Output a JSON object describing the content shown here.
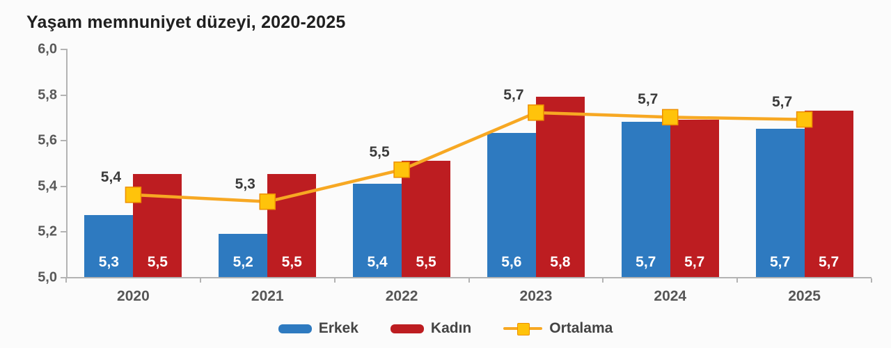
{
  "title": "Yaşam memnuniyet düzeyi, 2020-2025",
  "colors": {
    "erkek_blue": "#2e7ac0",
    "kadin_red": "#bd1d21",
    "line_orange": "#f7a823",
    "marker_yellow": "#ffc30b",
    "marker_border": "#ee8f00",
    "axis_gray": "#b3b3b3"
  },
  "chart_data": {
    "type": "bar",
    "title": "Yaşam memnuniyet düzeyi, 2020-2025",
    "categories": [
      "2020",
      "2021",
      "2022",
      "2023",
      "2024",
      "2025"
    ],
    "series": [
      {
        "name": "Erkek",
        "type": "bar",
        "color": "#2e7ac0",
        "values": [
          5.27,
          5.19,
          5.41,
          5.63,
          5.68,
          5.65
        ],
        "labels": [
          "5,3",
          "5,2",
          "5,4",
          "5,6",
          "5,7",
          "5,7"
        ]
      },
      {
        "name": "Kadın",
        "type": "bar",
        "color": "#bd1d21",
        "values": [
          5.45,
          5.45,
          5.51,
          5.79,
          5.69,
          5.73
        ],
        "labels": [
          "5,5",
          "5,5",
          "5,5",
          "5,8",
          "5,7",
          "5,7"
        ]
      },
      {
        "name": "Ortalama",
        "type": "line",
        "color": "#f7a823",
        "marker_color": "#ffc30b",
        "values": [
          5.36,
          5.33,
          5.47,
          5.72,
          5.7,
          5.69
        ],
        "labels": [
          "5,4",
          "5,3",
          "5,5",
          "5,7",
          "5,7",
          "5,7"
        ]
      }
    ],
    "xlabel": "",
    "ylabel": "",
    "ylim": [
      5.0,
      6.0
    ],
    "yticks": [
      "5,0",
      "5,2",
      "5,4",
      "5,6",
      "5,8",
      "6,0"
    ],
    "ytick_values": [
      5.0,
      5.2,
      5.4,
      5.6,
      5.8,
      6.0
    ],
    "grid": false,
    "legend_position": "bottom"
  },
  "legend": {
    "items": [
      {
        "label": "Erkek",
        "swatch": "bar",
        "color": "#2e7ac0"
      },
      {
        "label": "Kadın",
        "swatch": "bar",
        "color": "#bd1d21"
      },
      {
        "label": "Ortalama",
        "swatch": "line-marker",
        "color": "#f7a823",
        "marker_color": "#ffc30b"
      }
    ]
  }
}
